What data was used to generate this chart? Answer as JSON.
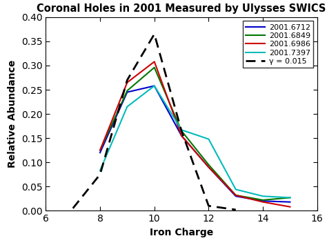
{
  "title": "Coronal Holes in 2001 Measured by Ulysses SWICS",
  "xlabel": "Iron Charge",
  "ylabel": "Relative Abundance",
  "xlim": [
    6,
    16
  ],
  "ylim": [
    0,
    0.4
  ],
  "xticks": [
    6,
    8,
    10,
    12,
    14,
    16
  ],
  "yticks": [
    0,
    0.05,
    0.1,
    0.15,
    0.2,
    0.25,
    0.3,
    0.35,
    0.4
  ],
  "series": [
    {
      "label": "2001.6712",
      "color": "#0000cc",
      "x": [
        8,
        9,
        10,
        11,
        12,
        13,
        14,
        15
      ],
      "y": [
        0.12,
        0.245,
        0.258,
        0.155,
        0.09,
        0.03,
        0.02,
        0.018
      ]
    },
    {
      "label": "2001.6849",
      "color": "#007700",
      "x": [
        8,
        9,
        10,
        11,
        12,
        13,
        14,
        15
      ],
      "y": [
        0.125,
        0.248,
        0.296,
        0.165,
        0.095,
        0.032,
        0.022,
        0.027
      ]
    },
    {
      "label": "2001.6986",
      "color": "#cc0000",
      "x": [
        8,
        9,
        10,
        11,
        12,
        13,
        14,
        15
      ],
      "y": [
        0.125,
        0.265,
        0.308,
        0.155,
        0.09,
        0.032,
        0.018,
        0.008
      ]
    },
    {
      "label": "2001.7397",
      "color": "#00bbbb",
      "x": [
        8,
        9,
        10,
        11,
        12,
        13,
        14,
        15
      ],
      "y": [
        0.083,
        0.215,
        0.258,
        0.167,
        0.148,
        0.044,
        0.03,
        0.027
      ]
    }
  ],
  "dashed": {
    "label": "γ = 0.015",
    "color": "#000000",
    "x": [
      7,
      8,
      9,
      10,
      11,
      12,
      13
    ],
    "y": [
      0.005,
      0.075,
      0.27,
      0.365,
      0.165,
      0.01,
      0.002
    ]
  },
  "legend_loc": "upper right",
  "background_color": "#ffffff",
  "title_fontsize": 10.5,
  "label_fontsize": 10,
  "tick_fontsize": 10,
  "legend_fontsize": 8,
  "linewidth": 1.5
}
